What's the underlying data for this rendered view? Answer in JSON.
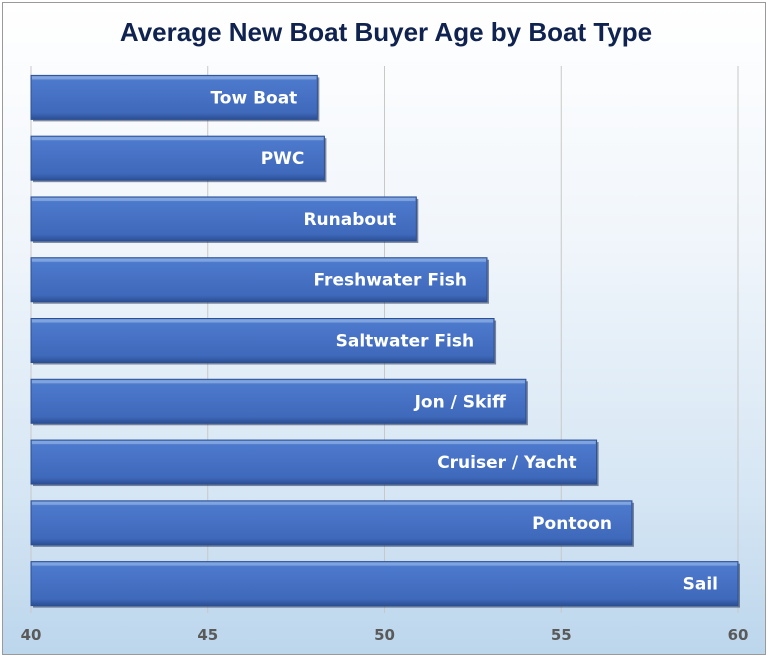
{
  "chart_data": {
    "type": "bar",
    "orientation": "horizontal",
    "title": "Average New Boat Buyer Age by Boat Type",
    "xlabel": "",
    "ylabel": "",
    "categories": [
      "Tow Boat",
      "PWC",
      "Runabout",
      "Freshwater Fish",
      "Saltwater Fish",
      "Jon / Skiff",
      "Cruiser / Yacht",
      "Pontoon",
      "Sail"
    ],
    "values": [
      48.1,
      48.3,
      50.9,
      52.9,
      53.1,
      54.0,
      56.0,
      57.0,
      60.0
    ],
    "xlim": [
      40,
      60
    ],
    "xticks": [
      40,
      45,
      50,
      55,
      60
    ],
    "grid": true,
    "legend": "none",
    "bar_color": "#4472c4",
    "label_color": "#ffffff"
  }
}
